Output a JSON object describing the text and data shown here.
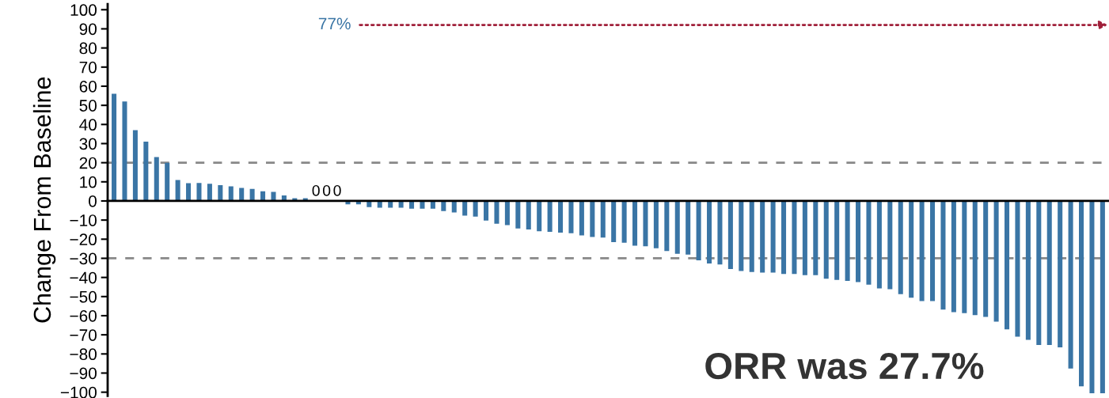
{
  "chart_data": {
    "type": "bar",
    "ylabel": "Change From Baseline",
    "categories": [
      null,
      null,
      null,
      null,
      null,
      null,
      null,
      null,
      null,
      null,
      null,
      null,
      null,
      null,
      null,
      null,
      null,
      null,
      null,
      null,
      null,
      null,
      null,
      null,
      null,
      null,
      null,
      null,
      null,
      null,
      null,
      null,
      null,
      null,
      null,
      null,
      null,
      null,
      null,
      null,
      null,
      null,
      null,
      null,
      null,
      null,
      null,
      null,
      null,
      null,
      null,
      null,
      null,
      null,
      null,
      null,
      null,
      null,
      null,
      null,
      null,
      null,
      null,
      null,
      null,
      null,
      null,
      null,
      null,
      null,
      null,
      null,
      null,
      null,
      null,
      null,
      null,
      null,
      null,
      null,
      null,
      null,
      null,
      null,
      null,
      null,
      null,
      null,
      null,
      null,
      null,
      null,
      null,
      null
    ],
    "values": [
      56,
      52,
      37,
      31,
      23,
      20,
      11,
      9.3,
      9.4,
      9,
      8.3,
      7.6,
      6.8,
      6.3,
      5.1,
      4.7,
      2.9,
      1.4,
      1.4,
      0,
      0,
      0,
      -1.8,
      -1.8,
      -3.2,
      -3.5,
      -3.5,
      -3.5,
      -4,
      -4,
      -4,
      -5.3,
      -6,
      -7.7,
      -8.2,
      -10.3,
      -11.9,
      -12.6,
      -14.4,
      -14.9,
      -15.8,
      -16.2,
      -16.6,
      -16.9,
      -18,
      -18.8,
      -19.1,
      -21.5,
      -21.8,
      -23.4,
      -23.7,
      -24.7,
      -26.2,
      -27.6,
      -28,
      -31,
      -32.7,
      -33.2,
      -35.6,
      -36.6,
      -37.2,
      -37.5,
      -37.5,
      -38.2,
      -38.2,
      -38.8,
      -38.8,
      -40.7,
      -41.3,
      -41.8,
      -42.4,
      -43.8,
      -45.7,
      -46.2,
      -48.7,
      -50.6,
      -52.4,
      -52.4,
      -56.8,
      -58.1,
      -58.7,
      -59.7,
      -60.6,
      -63.1,
      -67.1,
      -71,
      -72.6,
      -75.3,
      -75.3,
      -76.6,
      -87.6,
      -96.9,
      -100.6,
      -100.6
    ],
    "value_labels": [
      null,
      null,
      null,
      null,
      null,
      null,
      null,
      null,
      null,
      null,
      null,
      null,
      null,
      null,
      null,
      null,
      null,
      null,
      null,
      "0",
      "0",
      "0",
      null,
      null,
      null,
      null,
      null,
      null,
      null,
      null,
      null,
      null,
      null,
      null,
      null,
      null,
      null,
      null,
      null,
      null,
      null,
      null,
      null,
      null,
      null,
      null,
      null,
      null,
      null,
      null,
      null,
      null,
      null,
      null,
      null,
      null,
      null,
      null,
      null,
      null,
      null,
      null,
      null,
      null,
      null,
      null,
      null,
      null,
      null,
      null,
      null,
      null,
      null,
      null,
      null,
      null,
      null,
      null,
      null,
      null,
      null,
      null,
      null,
      null,
      null,
      null,
      null,
      null,
      null,
      null,
      null,
      null,
      null,
      null
    ],
    "color": "#3a75a5",
    "ylim": [
      -102,
      103
    ],
    "yticks": [
      -100,
      -90,
      -80,
      -70,
      -60,
      -50,
      -40,
      -30,
      -20,
      -10,
      0,
      10,
      20,
      30,
      40,
      50,
      60,
      70,
      80,
      90,
      100
    ],
    "ref_lines": [
      {
        "axis": "y",
        "value": 20,
        "color": "#888888",
        "line_style": "dashed"
      },
      {
        "axis": "y",
        "value": -30,
        "color": "#888888",
        "line_style": "dashed"
      }
    ],
    "annotations": [
      "77%",
      "ORR was 27.7%"
    ],
    "grid": false,
    "legend": false
  }
}
